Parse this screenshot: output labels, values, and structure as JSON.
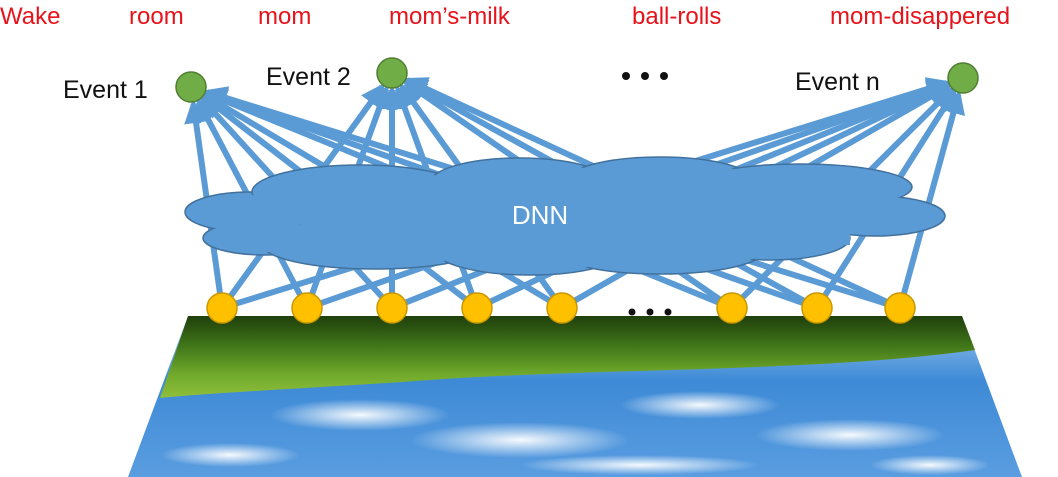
{
  "top_words": [
    "Wake",
    "room",
    "mom",
    "mom’s-milk",
    "ball-rolls",
    "mom-disappered"
  ],
  "event_labels": [
    "Event 1",
    "Event 2",
    "Event n"
  ],
  "network_label": "DNN",
  "colors": {
    "word_text": "#e8121b",
    "arrow": "#5b9bd5",
    "cloud_fill": "#5b9bd5",
    "cloud_stroke": "#41719c",
    "event_node": "#70ad47",
    "event_node_stroke": "#507e32",
    "input_node": "#ffc000",
    "input_node_stroke": "#c99700",
    "ellipsis": "#111111"
  },
  "icons": {
    "event_node": "green-circle",
    "input_node": "yellow-circle",
    "ground": "grass-and-sky-plane"
  }
}
